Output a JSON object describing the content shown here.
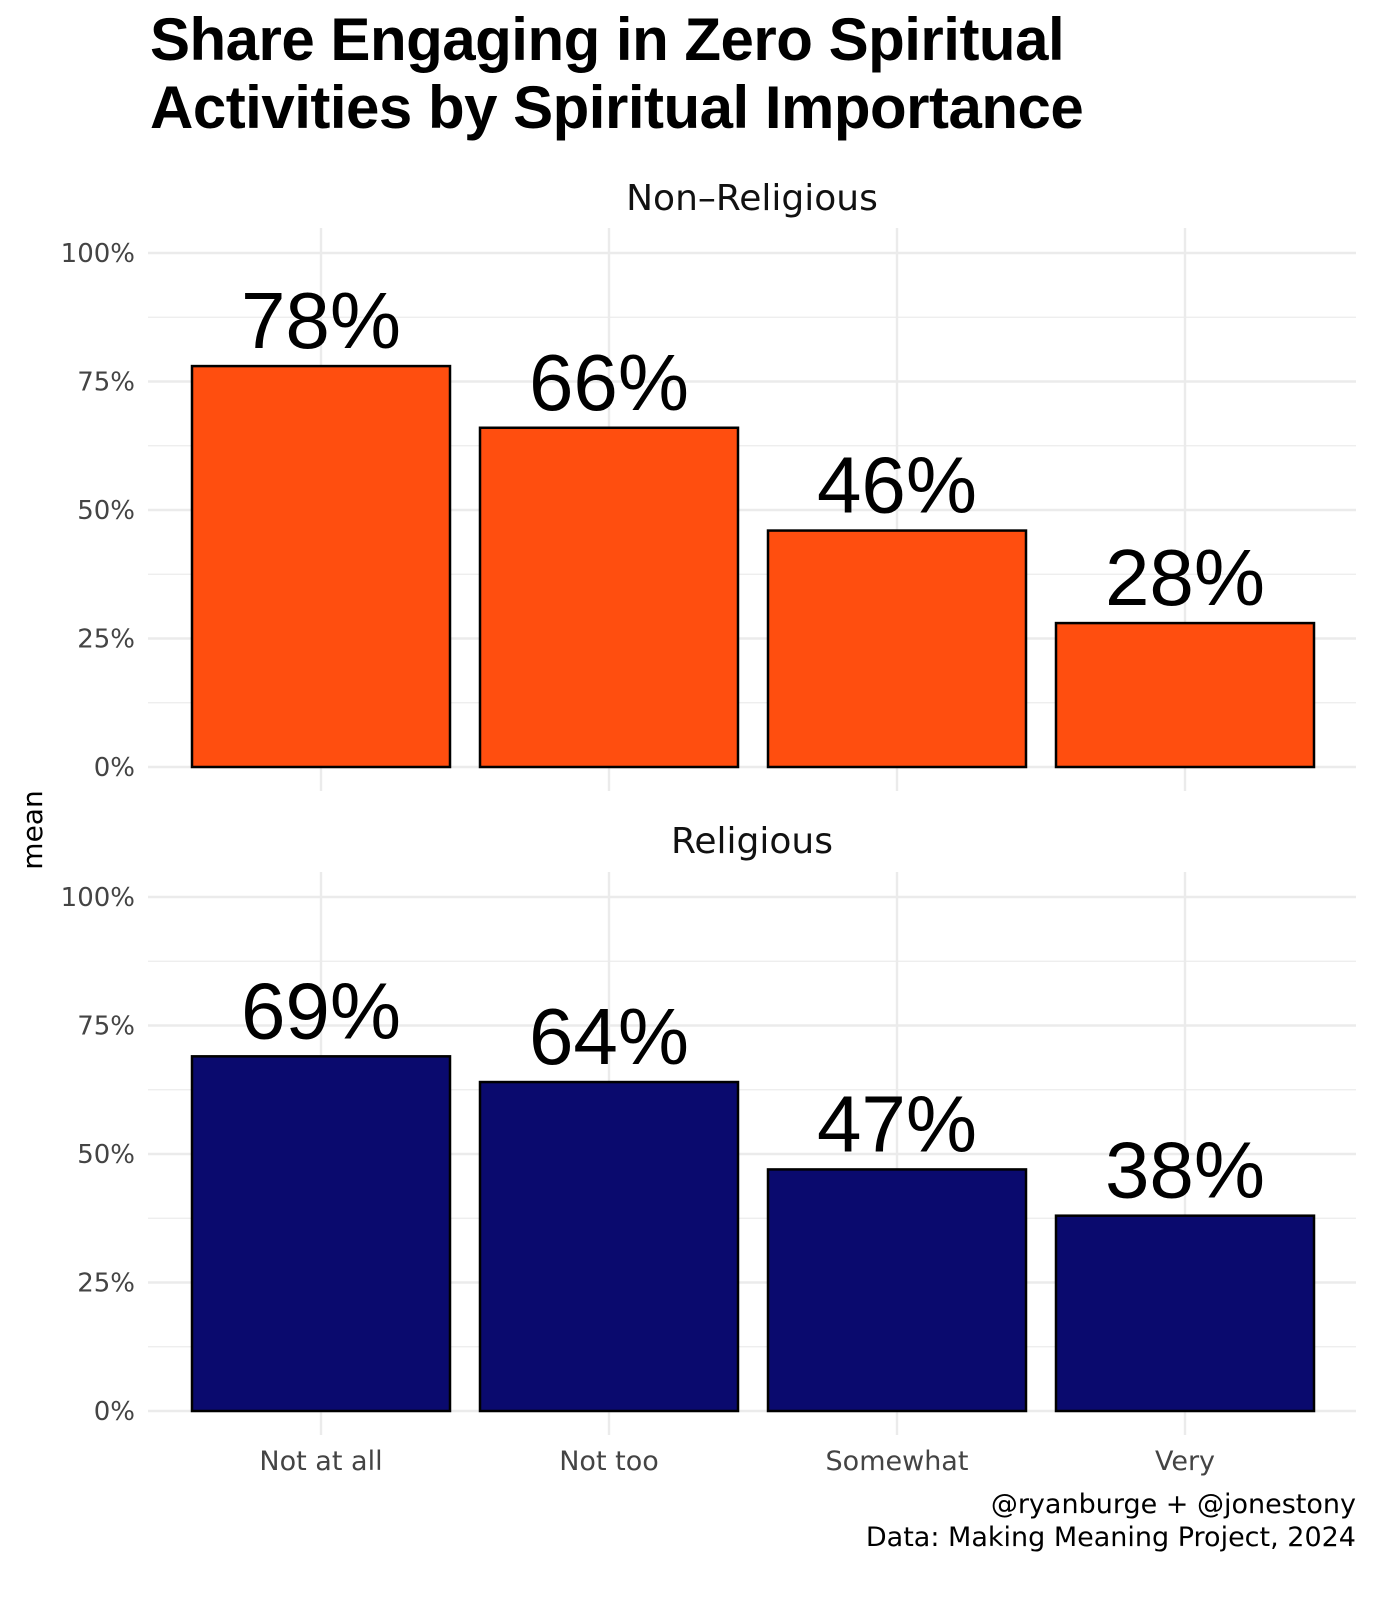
{
  "title": {
    "line1": "Share Engaging in Zero Spiritual",
    "line2": "Activities by Spiritual Importance"
  },
  "colors": {
    "non_religious": "#ff4e0f",
    "religious": "#0a0a6e",
    "grid": "#ebebeb"
  },
  "chart_data": {
    "type": "bar",
    "categories": [
      "Not at all",
      "Not too",
      "Somewhat",
      "Very"
    ],
    "ylabel": "mean",
    "xlabel": "",
    "ylim": [
      0,
      100
    ],
    "yticks": [
      0,
      25,
      50,
      75,
      100
    ],
    "ytick_labels": [
      "0%",
      "25%",
      "50%",
      "75%",
      "100%"
    ],
    "panels": [
      {
        "name": "Non-Religious",
        "title": "Non–Religious",
        "values": [
          78,
          66,
          46,
          28
        ],
        "labels": [
          "78%",
          "66%",
          "46%",
          "28%"
        ]
      },
      {
        "name": "Religious",
        "title": "Religious",
        "values": [
          69,
          64,
          47,
          38
        ],
        "labels": [
          "69%",
          "64%",
          "47%",
          "38%"
        ]
      }
    ]
  },
  "caption": {
    "line1": "@ryanburge + @jonestony",
    "line2": "Data: Making Meaning Project, 2024"
  }
}
